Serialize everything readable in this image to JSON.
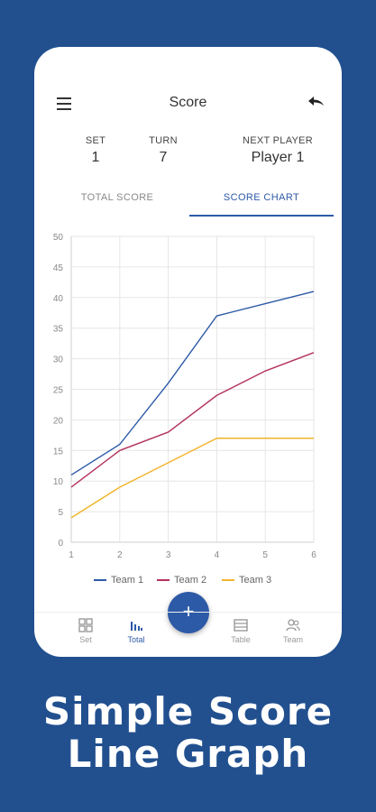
{
  "header": {
    "title": "Score",
    "menu_icon": "menu-icon",
    "undo_icon": "undo-icon"
  },
  "info": {
    "set_label": "SET",
    "set_value": "1",
    "turn_label": "TURN",
    "turn_value": "7",
    "next_label": "NEXT PLAYER",
    "next_value": "Player 1"
  },
  "tabs": {
    "total": "TOTAL SCORE",
    "chart": "SCORE CHART"
  },
  "chart_data": {
    "type": "line",
    "x": [
      1,
      2,
      3,
      4,
      5,
      6
    ],
    "ylim": [
      0,
      50
    ],
    "yticks": [
      0,
      5,
      10,
      15,
      20,
      25,
      30,
      35,
      40,
      45,
      50
    ],
    "grid": true,
    "legend_position": "bottom",
    "series": [
      {
        "name": "Team 1",
        "color": "#2d5aa7",
        "values": [
          11,
          16,
          26,
          37,
          39,
          41
        ]
      },
      {
        "name": "Team 2",
        "color": "#b4345c",
        "values": [
          9,
          15,
          18,
          24,
          28,
          31
        ]
      },
      {
        "name": "Team 3",
        "color": "#f0b429",
        "values": [
          4,
          9,
          13,
          17,
          17,
          17
        ]
      }
    ]
  },
  "fab": {
    "label": "+"
  },
  "bottom_nav": {
    "set": "Set",
    "total": "Total",
    "table": "Table",
    "team": "Team"
  },
  "caption": {
    "line1": "Simple Score",
    "line2": "Line Graph"
  }
}
